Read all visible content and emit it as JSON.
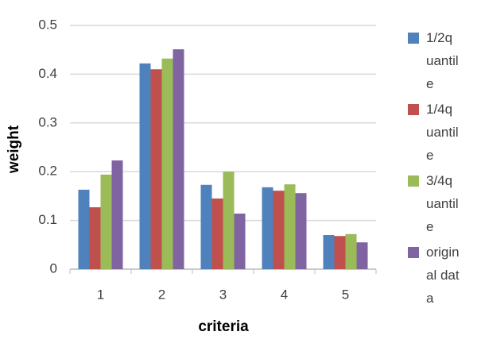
{
  "chart_data": {
    "type": "bar",
    "categories": [
      "1",
      "2",
      "3",
      "4",
      "5"
    ],
    "series": [
      {
        "name": "1/2quantile",
        "color": "#4f81bd",
        "values": [
          0.163,
          0.422,
          0.173,
          0.168,
          0.07
        ]
      },
      {
        "name": "1/4quantile",
        "color": "#c0504d",
        "values": [
          0.127,
          0.41,
          0.145,
          0.161,
          0.068
        ]
      },
      {
        "name": "3/4quantile",
        "color": "#9bbb59",
        "values": [
          0.194,
          0.432,
          0.2,
          0.174,
          0.072
        ]
      },
      {
        "name": "original data",
        "color": "#8064a2",
        "values": [
          0.223,
          0.451,
          0.114,
          0.156,
          0.055
        ]
      }
    ],
    "xlabel": "criteria",
    "ylabel": "weight",
    "ylim": [
      0,
      0.5
    ],
    "yticks": [
      0,
      0.1,
      0.2,
      0.3,
      0.4,
      0.5
    ],
    "grid": true,
    "legend": "right"
  }
}
